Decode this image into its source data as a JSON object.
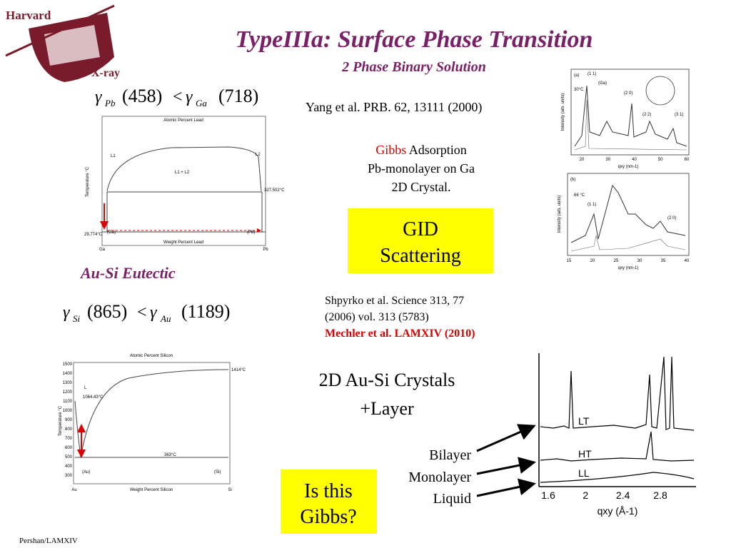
{
  "logo": {
    "top": "Harvard",
    "bottom": "X-ray"
  },
  "header": {
    "title": "TypeIIIa: Surface Phase Transition",
    "subtitle": "2 Phase Binary Solution"
  },
  "equations": [
    {
      "symbol": "γ",
      "left_sub": "Pb",
      "left_value": "(458)",
      "relation": "<",
      "right_sub": "Ga",
      "right_value": "(718)"
    },
    {
      "symbol": "γ",
      "left_sub": "Si",
      "left_value": "(865)",
      "relation": "<",
      "right_sub": "Au",
      "right_value": "(1189)"
    }
  ],
  "references": {
    "yang": "Yang et al. PRB. 62, 13111 (2000)",
    "shpyrko": [
      "Shpyrko et al. Science 313, 77",
      "(2006) vol. 313 (5783)"
    ],
    "mechler": "Mechler et al. LAMXIV (2010)"
  },
  "gibbs_note": {
    "highlight": "Gibbs",
    "rest": "Adsorption",
    "lines": [
      "Pb-monolayer on Ga",
      "2D Crystal."
    ]
  },
  "boxes": [
    {
      "lines": [
        "GID",
        "Scattering"
      ]
    },
    {
      "lines": [
        "Is this",
        "Gibbs?"
      ]
    }
  ],
  "section_label": "Au-Si Eutectic",
  "crystals_note": [
    "2D Au-Si Crystals",
    "+Layer"
  ],
  "layer_labels": [
    "Bilayer",
    "Monolayer",
    "Liquid"
  ],
  "footer": "Pershan/LAMXIV",
  "figures": {
    "ga_pb": {
      "top_axis": "Atomic Percent Lead",
      "bottom_axis": "Weight Percent Lead",
      "y_axis": "Temperature °C",
      "labels": [
        "L1",
        "L2",
        "L1 + L2",
        "(Ga)",
        "(Pb)"
      ],
      "temps": [
        "327.502°C",
        "29.774°C"
      ],
      "ends": [
        "Ga",
        "Pb"
      ]
    },
    "au_si": {
      "top_axis": "Atomic Percent Silicon",
      "bottom_axis": "Weight Percent Silicon",
      "y_axis": "Temperature °C",
      "labels": [
        "L",
        "(Au)",
        "(Si)"
      ],
      "temps": [
        "1064.43°C",
        "1414°C",
        "363°C"
      ],
      "ends": [
        "Au",
        "Si"
      ],
      "yticks": [
        "1500",
        "1400",
        "1300",
        "1200",
        "1100",
        "1000",
        "900",
        "800",
        "700",
        "600",
        "500",
        "400",
        "300"
      ]
    },
    "gid_a": {
      "panel": "(a)",
      "temp": "30°C",
      "peaks": [
        "(1 1)",
        "(Ga)",
        "(2 0)",
        "(2 2)",
        "(3 1)"
      ],
      "xticks": [
        "20",
        "30",
        "40",
        "50",
        "60"
      ],
      "xlabel": "qxy (nm-1)",
      "ylabel": "Intensity (arb. units)"
    },
    "gid_b": {
      "panel": "(b)",
      "temp": "66 °C",
      "peaks": [
        "(1 1)",
        "(2 0)"
      ],
      "xticks": [
        "15",
        "20",
        "25",
        "30",
        "35",
        "40"
      ],
      "xlabel": "qxy (nm-1)",
      "ylabel": "Intensity (arb. units)"
    },
    "xrd": {
      "curves": [
        "LT",
        "HT",
        "LL"
      ],
      "xticks": [
        "1.6",
        "2",
        "2.4",
        "2.8"
      ],
      "xlabel": "qxy (Å-1)"
    }
  }
}
